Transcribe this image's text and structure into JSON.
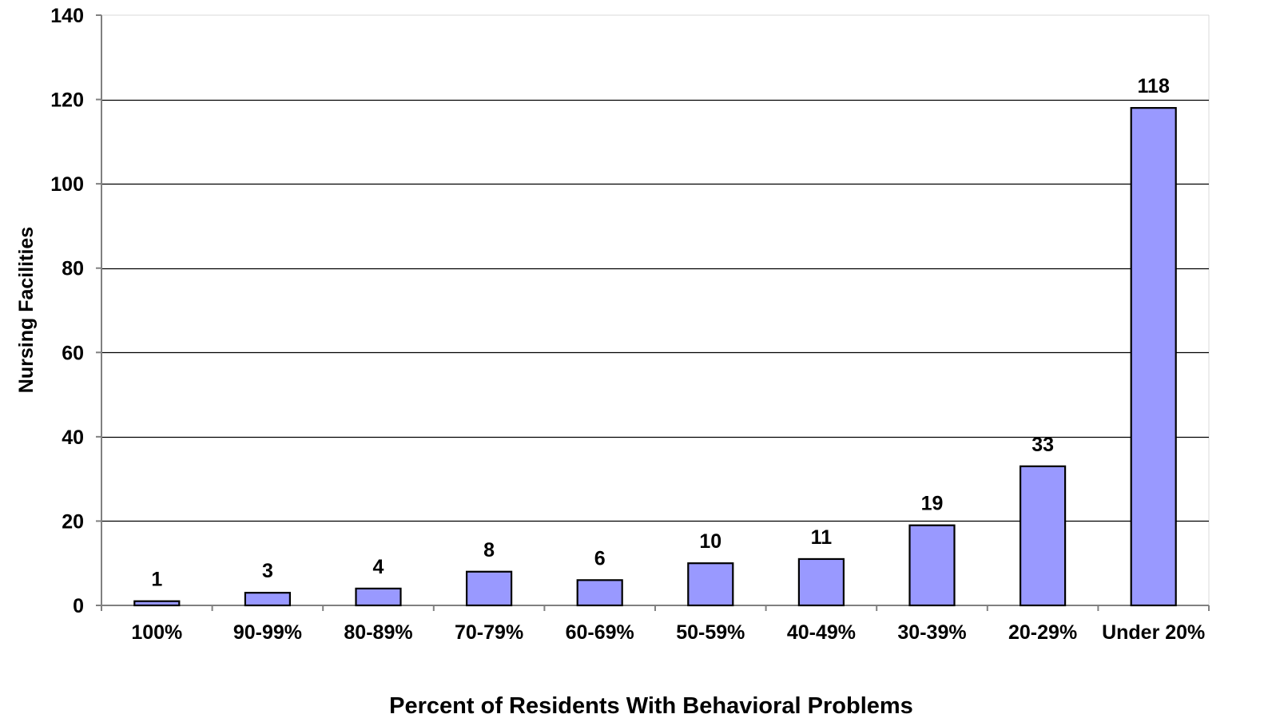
{
  "chart_data": {
    "type": "bar",
    "title": "",
    "xlabel": "Percent of Residents With Behavioral Problems",
    "ylabel": "Nursing Facilities",
    "categories": [
      "100%",
      "90-99%",
      "80-89%",
      "70-79%",
      "60-69%",
      "50-59%",
      "40-49%",
      "30-39%",
      "20-29%",
      "Under 20%"
    ],
    "values": [
      1,
      3,
      4,
      8,
      6,
      10,
      11,
      19,
      33,
      118
    ],
    "data_labels": [
      "1",
      "3",
      "4",
      "8",
      "6",
      "10",
      "11",
      "19",
      "33",
      "118"
    ],
    "ylim": [
      0,
      140
    ],
    "yticks": [
      0,
      20,
      40,
      60,
      80,
      100,
      120,
      140
    ],
    "grid": true,
    "legend": "none",
    "colors": {
      "bar_fill": "#9999ff",
      "bar_stroke": "#000000",
      "grid": "#000000",
      "axis": "#808080"
    }
  }
}
